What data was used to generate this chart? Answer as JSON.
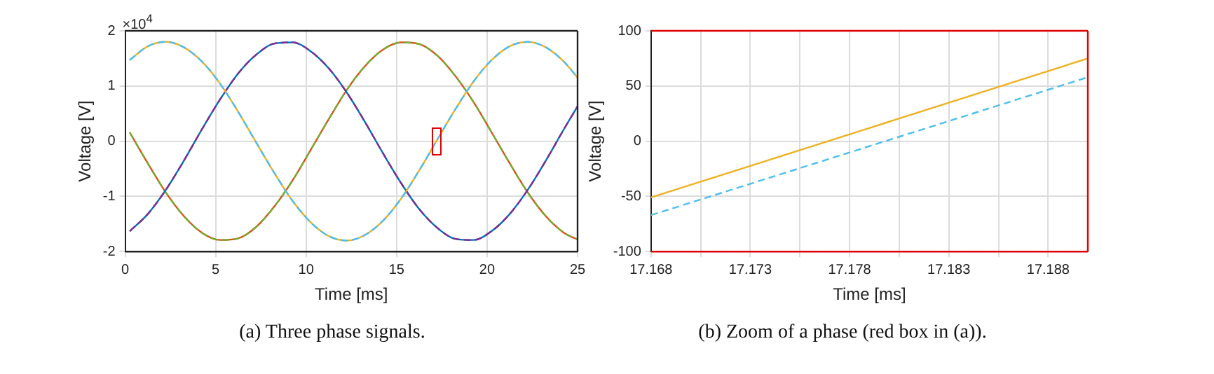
{
  "chart_data": [
    {
      "type": "line",
      "title": "(a) Three phase signals.",
      "xlabel": "Time [ms]",
      "ylabel": "Voltage [V]",
      "annotations": [
        "×10$^{4}$"
      ],
      "x": [
        0.25,
        1.25,
        2.25,
        3.25,
        4.25,
        5.25,
        6.25,
        7.25,
        8.25,
        9.25,
        10.25,
        11.25,
        12.25,
        13.25,
        14.25,
        15.25,
        16.25,
        17.25,
        18.25,
        19.25,
        20.25,
        21.25,
        22.25,
        23.25,
        24.25,
        25
      ],
      "series": [
        {
          "color": "#4dbeee",
          "line_style": "dashed",
          "values": [
            1.47,
            1.72,
            1.8,
            1.7,
            1.44,
            1.04,
            0.53,
            -0.03,
            -0.58,
            -1.08,
            -1.47,
            -1.72,
            -1.8,
            -1.7,
            -1.44,
            -1.04,
            -0.53,
            0.03,
            0.58,
            1.08,
            1.47,
            1.72,
            1.8,
            1.7,
            1.44,
            1.15
          ]
        },
        {
          "color": "#edb120",
          "line_style": "solid",
          "values": [
            1.47,
            1.72,
            1.8,
            1.7,
            1.44,
            1.04,
            0.53,
            -0.03,
            -0.58,
            -1.08,
            -1.47,
            -1.72,
            -1.8,
            -1.7,
            -1.44,
            -1.04,
            -0.53,
            0.03,
            0.58,
            1.08,
            1.47,
            1.72,
            1.8,
            1.7,
            1.44,
            1.15
          ]
        },
        {
          "color": "#7e2f8e",
          "line_style": "dashed",
          "values": [
            -1.63,
            -1.32,
            -0.88,
            -0.35,
            0.22,
            0.76,
            1.23,
            1.57,
            1.77,
            1.79,
            1.63,
            1.32,
            0.88,
            0.35,
            -0.22,
            -0.76,
            -1.23,
            -1.57,
            -1.77,
            -1.79,
            -1.63,
            -1.32,
            -0.88,
            -0.35,
            0.22,
            0.63
          ]
        },
        {
          "color": "#0072bd",
          "line_style": "solid",
          "values": [
            -1.63,
            -1.32,
            -0.88,
            -0.35,
            0.22,
            0.76,
            1.23,
            1.57,
            1.77,
            1.79,
            1.63,
            1.32,
            0.88,
            0.35,
            -0.22,
            -0.76,
            -1.23,
            -1.57,
            -1.77,
            -1.79,
            -1.63,
            -1.32,
            -0.88,
            -0.35,
            0.22,
            0.63
          ]
        },
        {
          "color": "#77ac30",
          "line_style": "dashed",
          "values": [
            0.16,
            -0.4,
            -0.93,
            -1.36,
            -1.66,
            -1.79,
            -1.76,
            -1.55,
            -1.18,
            -0.71,
            -0.16,
            0.4,
            0.93,
            1.36,
            1.66,
            1.79,
            1.76,
            1.55,
            1.18,
            0.71,
            0.16,
            -0.4,
            -0.93,
            -1.36,
            -1.66,
            -1.78
          ]
        },
        {
          "color": "#d95319",
          "line_style": "solid",
          "values": [
            0.16,
            -0.4,
            -0.93,
            -1.36,
            -1.66,
            -1.79,
            -1.76,
            -1.55,
            -1.18,
            -0.71,
            -0.16,
            0.4,
            0.93,
            1.36,
            1.66,
            1.79,
            1.76,
            1.55,
            1.18,
            0.71,
            0.16,
            -0.4,
            -0.93,
            -1.36,
            -1.66,
            -1.78
          ]
        }
      ],
      "xlim": [
        0,
        25
      ],
      "xticks": [
        0,
        5,
        10,
        15,
        20,
        25
      ],
      "ylim": [
        -2,
        2
      ],
      "yticks": [
        -2,
        -1,
        0,
        1,
        2
      ],
      "grid": true,
      "legend": false,
      "marker": "none"
    },
    {
      "type": "line",
      "title": "(b) Zoom of a phase (red box in (a)).",
      "xlabel": "Time [ms]",
      "ylabel": "Voltage [V]",
      "x": [
        17.168,
        17.19
      ],
      "series": [
        {
          "color": "#4dbeee",
          "line_style": "dashed",
          "values": [
            -67,
            58
          ]
        },
        {
          "color": "#edb120",
          "line_style": "solid",
          "values": [
            -51,
            75
          ]
        }
      ],
      "xlim": [
        17.168,
        17.19
      ],
      "xticks": [
        17.168,
        {
          "value": 17.1705,
          "label": null
        },
        17.173,
        {
          "value": 17.1755,
          "label": null
        },
        17.178,
        {
          "value": 17.1805,
          "label": null
        },
        17.183,
        {
          "value": 17.1855,
          "label": null
        },
        17.188
      ],
      "ylim": [
        -100,
        100
      ],
      "yticks": [
        -100,
        -50,
        0,
        50,
        100
      ],
      "grid": true,
      "legend": false,
      "marker": "none"
    }
  ]
}
